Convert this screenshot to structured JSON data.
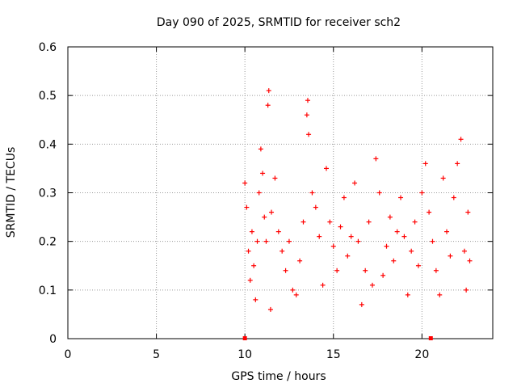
{
  "chart_data": {
    "type": "scatter",
    "title": "Day 090 of 2025, SRMTID for receiver sch2",
    "xlabel": "GPS time / hours",
    "ylabel": "SRMTID / TECUs",
    "xlim": [
      0,
      24
    ],
    "ylim": [
      0,
      0.6
    ],
    "x_ticks": [
      0,
      5,
      10,
      15,
      20
    ],
    "x_tick_labels": [
      "0",
      "5",
      "10",
      "15",
      "20"
    ],
    "y_ticks": [
      0,
      0.1,
      0.2,
      0.3,
      0.4,
      0.5,
      0.6
    ],
    "y_tick_labels": [
      "0",
      "0.1",
      "0.2",
      "0.3",
      "0.4",
      "0.5",
      "0.6"
    ],
    "grid": true,
    "marker": "+",
    "marker_color": "#ff0000",
    "series": [
      {
        "name": "SRMTID",
        "points": [
          {
            "x": 10.0,
            "y": 0.32
          },
          {
            "x": 10.1,
            "y": 0.27
          },
          {
            "x": 10.2,
            "y": 0.18
          },
          {
            "x": 10.3,
            "y": 0.12
          },
          {
            "x": 10.4,
            "y": 0.22
          },
          {
            "x": 10.5,
            "y": 0.15
          },
          {
            "x": 10.6,
            "y": 0.08
          },
          {
            "x": 10.7,
            "y": 0.2
          },
          {
            "x": 10.8,
            "y": 0.3
          },
          {
            "x": 10.9,
            "y": 0.39
          },
          {
            "x": 11.0,
            "y": 0.34
          },
          {
            "x": 11.1,
            "y": 0.25
          },
          {
            "x": 11.2,
            "y": 0.2
          },
          {
            "x": 11.3,
            "y": 0.48
          },
          {
            "x": 11.35,
            "y": 0.51
          },
          {
            "x": 11.45,
            "y": 0.06
          },
          {
            "x": 11.5,
            "y": 0.26
          },
          {
            "x": 11.7,
            "y": 0.33
          },
          {
            "x": 11.9,
            "y": 0.22
          },
          {
            "x": 12.1,
            "y": 0.18
          },
          {
            "x": 12.3,
            "y": 0.14
          },
          {
            "x": 12.5,
            "y": 0.2
          },
          {
            "x": 12.7,
            "y": 0.1
          },
          {
            "x": 12.9,
            "y": 0.09
          },
          {
            "x": 13.1,
            "y": 0.16
          },
          {
            "x": 13.3,
            "y": 0.24
          },
          {
            "x": 13.5,
            "y": 0.46
          },
          {
            "x": 13.55,
            "y": 0.49
          },
          {
            "x": 13.6,
            "y": 0.42
          },
          {
            "x": 13.8,
            "y": 0.3
          },
          {
            "x": 14.0,
            "y": 0.27
          },
          {
            "x": 14.2,
            "y": 0.21
          },
          {
            "x": 14.4,
            "y": 0.11
          },
          {
            "x": 14.6,
            "y": 0.35
          },
          {
            "x": 14.8,
            "y": 0.24
          },
          {
            "x": 15.0,
            "y": 0.19
          },
          {
            "x": 15.2,
            "y": 0.14
          },
          {
            "x": 15.4,
            "y": 0.23
          },
          {
            "x": 15.6,
            "y": 0.29
          },
          {
            "x": 15.8,
            "y": 0.17
          },
          {
            "x": 16.0,
            "y": 0.21
          },
          {
            "x": 16.2,
            "y": 0.32
          },
          {
            "x": 16.4,
            "y": 0.2
          },
          {
            "x": 16.6,
            "y": 0.07
          },
          {
            "x": 16.8,
            "y": 0.14
          },
          {
            "x": 17.0,
            "y": 0.24
          },
          {
            "x": 17.2,
            "y": 0.11
          },
          {
            "x": 17.4,
            "y": 0.37
          },
          {
            "x": 17.6,
            "y": 0.3
          },
          {
            "x": 17.8,
            "y": 0.13
          },
          {
            "x": 18.0,
            "y": 0.19
          },
          {
            "x": 18.2,
            "y": 0.25
          },
          {
            "x": 18.4,
            "y": 0.16
          },
          {
            "x": 18.6,
            "y": 0.22
          },
          {
            "x": 18.8,
            "y": 0.29
          },
          {
            "x": 19.0,
            "y": 0.21
          },
          {
            "x": 19.2,
            "y": 0.09
          },
          {
            "x": 19.4,
            "y": 0.18
          },
          {
            "x": 19.6,
            "y": 0.24
          },
          {
            "x": 19.8,
            "y": 0.15
          },
          {
            "x": 20.0,
            "y": 0.3
          },
          {
            "x": 20.2,
            "y": 0.36
          },
          {
            "x": 20.4,
            "y": 0.26
          },
          {
            "x": 20.6,
            "y": 0.2
          },
          {
            "x": 20.8,
            "y": 0.14
          },
          {
            "x": 21.0,
            "y": 0.09
          },
          {
            "x": 21.2,
            "y": 0.33
          },
          {
            "x": 21.4,
            "y": 0.22
          },
          {
            "x": 21.6,
            "y": 0.17
          },
          {
            "x": 21.8,
            "y": 0.29
          },
          {
            "x": 22.0,
            "y": 0.36
          },
          {
            "x": 22.2,
            "y": 0.41
          },
          {
            "x": 22.4,
            "y": 0.18
          },
          {
            "x": 22.5,
            "y": 0.1
          },
          {
            "x": 22.6,
            "y": 0.26
          },
          {
            "x": 22.7,
            "y": 0.16
          }
        ]
      }
    ],
    "baseline_markers": [
      {
        "x": 10.0,
        "y": 0
      },
      {
        "x": 20.5,
        "y": 0
      }
    ]
  }
}
